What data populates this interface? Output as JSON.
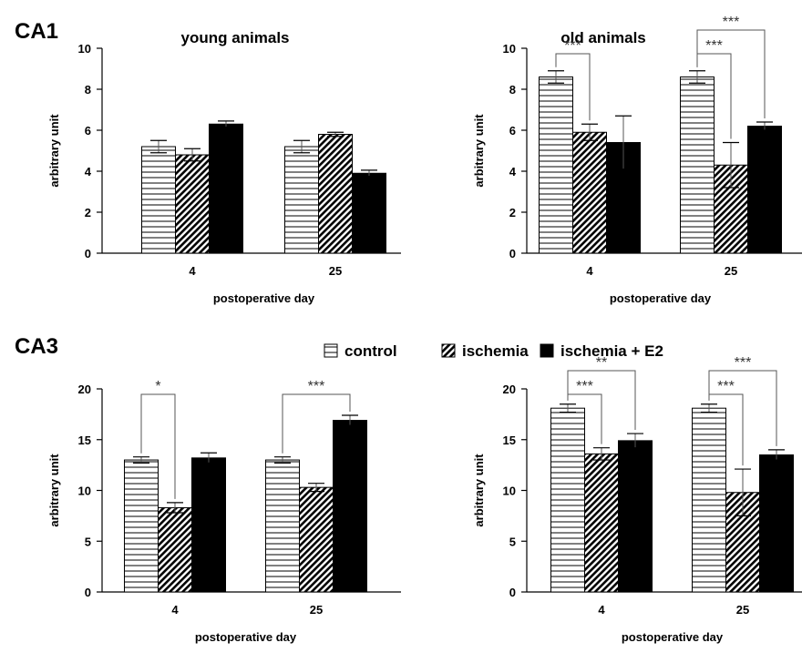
{
  "regions": [
    "CA1",
    "CA3"
  ],
  "legend": {
    "items": [
      {
        "label": "control",
        "pattern": "hstripe"
      },
      {
        "label": "ischemia",
        "pattern": "dstripe"
      },
      {
        "label": "ischemia + E2",
        "pattern": "solid"
      }
    ]
  },
  "chart_data": [
    {
      "type": "bar",
      "region": "CA1",
      "title": "young animals",
      "xlabel": "postoperative day",
      "ylabel": "arbitrary unit",
      "ylim": [
        0,
        10
      ],
      "yticks": [
        0,
        2,
        4,
        6,
        8,
        10
      ],
      "categories": [
        "4",
        "25"
      ],
      "series": [
        {
          "name": "control",
          "values": [
            5.2,
            5.2
          ],
          "errors": [
            0.3,
            0.3
          ]
        },
        {
          "name": "ischemia",
          "values": [
            4.8,
            5.8
          ],
          "errors": [
            0.3,
            0.1
          ]
        },
        {
          "name": "ischemia + E2",
          "values": [
            6.3,
            3.9
          ],
          "errors": [
            0.15,
            0.15
          ]
        }
      ],
      "significance": []
    },
    {
      "type": "bar",
      "region": "CA1",
      "title": "old animals",
      "xlabel": "postoperative day",
      "ylabel": "arbitrary unit",
      "ylim": [
        0,
        10
      ],
      "yticks": [
        0,
        2,
        4,
        6,
        8,
        10
      ],
      "categories": [
        "4",
        "25"
      ],
      "series": [
        {
          "name": "control",
          "values": [
            8.6,
            8.6
          ],
          "errors": [
            0.3,
            0.3
          ]
        },
        {
          "name": "ischemia",
          "values": [
            5.9,
            4.3
          ],
          "errors": [
            0.4,
            1.1
          ]
        },
        {
          "name": "ischemia + E2",
          "values": [
            5.4,
            6.2
          ],
          "errors": [
            1.3,
            0.2
          ]
        }
      ],
      "significance": [
        {
          "category": "4",
          "from": 0,
          "to": 1,
          "label": "***",
          "level": 1
        },
        {
          "category": "25",
          "from": 0,
          "to": 1,
          "label": "***",
          "level": 1
        },
        {
          "category": "25",
          "from": 0,
          "to": 2,
          "label": "***",
          "level": 2
        }
      ]
    },
    {
      "type": "bar",
      "region": "CA3",
      "title": "",
      "xlabel": "postoperative day",
      "ylabel": "arbitrary unit",
      "ylim": [
        0,
        20
      ],
      "yticks": [
        0,
        5,
        10,
        15,
        20
      ],
      "categories": [
        "4",
        "25"
      ],
      "series": [
        {
          "name": "control",
          "values": [
            13.0,
            13.0
          ],
          "errors": [
            0.3,
            0.3
          ]
        },
        {
          "name": "ischemia",
          "values": [
            8.3,
            10.3
          ],
          "errors": [
            0.5,
            0.4
          ]
        },
        {
          "name": "ischemia + E2",
          "values": [
            13.2,
            16.9
          ],
          "errors": [
            0.5,
            0.5
          ]
        }
      ],
      "significance": [
        {
          "category": "4",
          "from": 0,
          "to": 1,
          "label": "*",
          "level": 1
        },
        {
          "category": "25",
          "from": 0,
          "to": 2,
          "label": "***",
          "level": 1
        }
      ]
    },
    {
      "type": "bar",
      "region": "CA3",
      "title": "",
      "xlabel": "postoperative day",
      "ylabel": "arbitrary unit",
      "ylim": [
        0,
        20
      ],
      "yticks": [
        0,
        5,
        10,
        15,
        20
      ],
      "categories": [
        "4",
        "25"
      ],
      "series": [
        {
          "name": "control",
          "values": [
            18.1,
            18.1
          ],
          "errors": [
            0.4,
            0.4
          ]
        },
        {
          "name": "ischemia",
          "values": [
            13.6,
            9.8
          ],
          "errors": [
            0.6,
            2.3
          ]
        },
        {
          "name": "ischemia + E2",
          "values": [
            14.9,
            13.5
          ],
          "errors": [
            0.7,
            0.5
          ]
        }
      ],
      "significance": [
        {
          "category": "4",
          "from": 0,
          "to": 1,
          "label": "***",
          "level": 1
        },
        {
          "category": "4",
          "from": 0,
          "to": 2,
          "label": "**",
          "level": 2
        },
        {
          "category": "25",
          "from": 0,
          "to": 1,
          "label": "***",
          "level": 1
        },
        {
          "category": "25",
          "from": 0,
          "to": 2,
          "label": "***",
          "level": 2
        }
      ]
    }
  ]
}
